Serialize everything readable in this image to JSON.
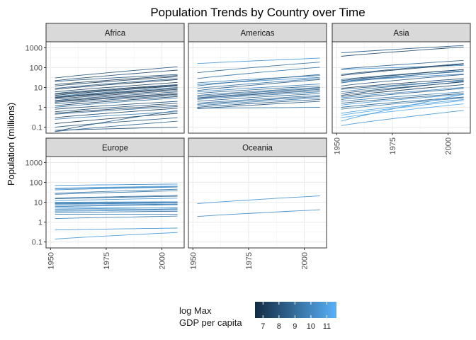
{
  "chart_data": {
    "type": "line",
    "facet_by": "continent",
    "title": "Population Trends by Country over Time",
    "ylabel": "Population (millions)",
    "xlabel": "",
    "y_scale": "log10",
    "ylim": [
      0.05,
      2000
    ],
    "xlim": [
      1948,
      2010
    ],
    "x_ticks": [
      1950,
      1975,
      2000
    ],
    "y_ticks": [
      0.1,
      1,
      10,
      100,
      1000
    ],
    "y_tick_labels": [
      "0.1",
      "1",
      "10",
      "100",
      "1000"
    ],
    "grid": true,
    "legend": {
      "title_lines": [
        "log Max",
        "GDP per capita"
      ],
      "position": "bottom",
      "ticks": [
        7,
        8,
        9,
        10,
        11
      ],
      "range": [
        6.5,
        11.6
      ],
      "color_low": "#132B43",
      "color_high": "#56B1F7"
    },
    "panels": [
      {
        "label": "Africa",
        "series": [
          {
            "p0": 30,
            "p1": 110,
            "g": 8.2
          },
          {
            "p0": 22,
            "p1": 75,
            "g": 7.8
          },
          {
            "p0": 20,
            "p1": 45,
            "g": 8.5
          },
          {
            "p0": 14,
            "p1": 40,
            "g": 7.2
          },
          {
            "p0": 12,
            "p1": 35,
            "g": 7.5
          },
          {
            "p0": 9,
            "p1": 28,
            "g": 8.8
          },
          {
            "p0": 8,
            "p1": 25,
            "g": 7.0
          },
          {
            "p0": 6,
            "p1": 18,
            "g": 7.6
          },
          {
            "p0": 5,
            "p1": 14,
            "g": 8.0
          },
          {
            "p0": 4.5,
            "p1": 13,
            "g": 7.3
          },
          {
            "p0": 4,
            "p1": 12,
            "g": 7.1
          },
          {
            "p0": 3.5,
            "p1": 10,
            "g": 9.2
          },
          {
            "p0": 3.2,
            "p1": 9,
            "g": 7.4
          },
          {
            "p0": 3,
            "p1": 8,
            "g": 6.9
          },
          {
            "p0": 2.6,
            "p1": 7,
            "g": 7.7
          },
          {
            "p0": 2.2,
            "p1": 6,
            "g": 8.3
          },
          {
            "p0": 2,
            "p1": 5,
            "g": 7.0
          },
          {
            "p0": 1.8,
            "p1": 4.5,
            "g": 7.5
          },
          {
            "p0": 1.5,
            "p1": 4,
            "g": 8.6
          },
          {
            "p0": 1.2,
            "p1": 3.5,
            "g": 7.2
          },
          {
            "p0": 1,
            "p1": 3,
            "g": 9.5
          },
          {
            "p0": 0.8,
            "p1": 2,
            "g": 7.9
          },
          {
            "p0": 0.6,
            "p1": 1.6,
            "g": 8.1
          },
          {
            "p0": 0.5,
            "p1": 1.3,
            "g": 7.3
          },
          {
            "p0": 0.45,
            "p1": 1.1,
            "g": 8.9
          },
          {
            "p0": 0.3,
            "p1": 0.9,
            "g": 7.6
          },
          {
            "p0": 0.25,
            "p1": 0.6,
            "g": 9.8
          },
          {
            "p0": 0.15,
            "p1": 0.5,
            "g": 7.1
          },
          {
            "p0": 0.1,
            "p1": 0.3,
            "g": 8.4
          },
          {
            "p0": 0.06,
            "p1": 0.2,
            "g": 9.0
          },
          {
            "p0": 0.06,
            "p1": 0.7,
            "g": 8.7
          },
          {
            "p0": 0.07,
            "p1": 0.1,
            "g": 8.0
          }
        ]
      },
      {
        "label": "Americas",
        "series": [
          {
            "p0": 160,
            "p1": 300,
            "g": 10.7
          },
          {
            "p0": 55,
            "p1": 190,
            "g": 9.2
          },
          {
            "p0": 28,
            "p1": 105,
            "g": 9.5
          },
          {
            "p0": 17,
            "p1": 40,
            "g": 9.8
          },
          {
            "p0": 14,
            "p1": 32,
            "g": 10.3
          },
          {
            "p0": 12,
            "p1": 45,
            "g": 8.9
          },
          {
            "p0": 9,
            "p1": 28,
            "g": 9.4
          },
          {
            "p0": 7,
            "p1": 25,
            "g": 8.6
          },
          {
            "p0": 6,
            "p1": 15,
            "g": 9.9
          },
          {
            "p0": 5,
            "p1": 12,
            "g": 8.8
          },
          {
            "p0": 4,
            "p1": 10,
            "g": 9.1
          },
          {
            "p0": 3.5,
            "p1": 9,
            "g": 8.5
          },
          {
            "p0": 3,
            "p1": 8,
            "g": 9.0
          },
          {
            "p0": 2.8,
            "p1": 7,
            "g": 8.3
          },
          {
            "p0": 2.5,
            "p1": 6,
            "g": 9.6
          },
          {
            "p0": 2,
            "p1": 5,
            "g": 8.7
          },
          {
            "p0": 1.6,
            "p1": 4,
            "g": 9.3
          },
          {
            "p0": 1.4,
            "p1": 3.5,
            "g": 8.9
          },
          {
            "p0": 1.2,
            "p1": 3,
            "g": 9.7
          },
          {
            "p0": 1,
            "p1": 2.5,
            "g": 8.4
          },
          {
            "p0": 0.9,
            "p1": 1,
            "g": 9.8
          },
          {
            "p0": 0.85,
            "p1": 2,
            "g": 8.2
          }
        ]
      },
      {
        "label": "Asia",
        "series": [
          {
            "p0": 550,
            "p1": 1300,
            "g": 8.6
          },
          {
            "p0": 370,
            "p1": 1100,
            "g": 7.8
          },
          {
            "p0": 85,
            "p1": 230,
            "g": 8.7
          },
          {
            "p0": 80,
            "p1": 130,
            "g": 10.5
          },
          {
            "p0": 45,
            "p1": 160,
            "g": 8.0
          },
          {
            "p0": 40,
            "p1": 150,
            "g": 7.5
          },
          {
            "p0": 25,
            "p1": 80,
            "g": 8.4
          },
          {
            "p0": 22,
            "p1": 80,
            "g": 7.6
          },
          {
            "p0": 20,
            "p1": 65,
            "g": 9.0
          },
          {
            "p0": 20,
            "p1": 48,
            "g": 10.2
          },
          {
            "p0": 17,
            "p1": 70,
            "g": 9.1
          },
          {
            "p0": 12,
            "p1": 45,
            "g": 8.3
          },
          {
            "p0": 9,
            "p1": 28,
            "g": 7.3
          },
          {
            "p0": 8,
            "p1": 22,
            "g": 8.9
          },
          {
            "p0": 6,
            "p1": 24,
            "g": 9.4
          },
          {
            "p0": 5,
            "p1": 19,
            "g": 7.9
          },
          {
            "p0": 4,
            "p1": 20,
            "g": 8.1
          },
          {
            "p0": 3.5,
            "p1": 14,
            "g": 7.4
          },
          {
            "p0": 3,
            "p1": 10,
            "g": 10.1
          },
          {
            "p0": 2.5,
            "p1": 9,
            "g": 8.5
          },
          {
            "p0": 2,
            "p1": 6,
            "g": 9.9
          },
          {
            "p0": 1.6,
            "p1": 5,
            "g": 8.2
          },
          {
            "p0": 1.3,
            "p1": 4.5,
            "g": 10.8
          },
          {
            "p0": 1,
            "p1": 3.3,
            "g": 8.8
          },
          {
            "p0": 0.8,
            "p1": 3,
            "g": 9.6
          },
          {
            "p0": 0.5,
            "p1": 2.5,
            "g": 10.9
          },
          {
            "p0": 0.4,
            "p1": 2.2,
            "g": 11.2
          },
          {
            "p0": 0.3,
            "p1": 1.5,
            "g": 11.4
          },
          {
            "p0": 0.2,
            "p1": 4.5,
            "g": 11.0
          },
          {
            "p0": 0.12,
            "p1": 0.7,
            "g": 10.6
          }
        ]
      },
      {
        "label": "Europe",
        "series": [
          {
            "p0": 70,
            "p1": 82,
            "g": 10.4
          },
          {
            "p0": 50,
            "p1": 65,
            "g": 10.6
          },
          {
            "p0": 48,
            "p1": 60,
            "g": 10.3
          },
          {
            "p0": 42,
            "p1": 58,
            "g": 10.2
          },
          {
            "p0": 28,
            "p1": 45,
            "g": 9.6
          },
          {
            "p0": 25,
            "p1": 38,
            "g": 9.4
          },
          {
            "p0": 16,
            "p1": 22,
            "g": 9.3
          },
          {
            "p0": 15,
            "p1": 20,
            "g": 9.0
          },
          {
            "p0": 12,
            "p1": 16,
            "g": 10.5
          },
          {
            "p0": 10,
            "p1": 10.5,
            "g": 10.1
          },
          {
            "p0": 9,
            "p1": 10,
            "g": 9.8
          },
          {
            "p0": 8.5,
            "p1": 10,
            "g": 9.5
          },
          {
            "p0": 8,
            "p1": 9,
            "g": 10.0
          },
          {
            "p0": 7,
            "p1": 8,
            "g": 9.7
          },
          {
            "p0": 6,
            "p1": 7.5,
            "g": 9.9
          },
          {
            "p0": 5.5,
            "p1": 5,
            "g": 10.7
          },
          {
            "p0": 4.5,
            "p1": 5.3,
            "g": 10.3
          },
          {
            "p0": 4,
            "p1": 4.5,
            "g": 9.2
          },
          {
            "p0": 3.5,
            "p1": 4,
            "g": 10.8
          },
          {
            "p0": 3,
            "p1": 3.5,
            "g": 9.1
          },
          {
            "p0": 2.5,
            "p1": 2.5,
            "g": 9.9
          },
          {
            "p0": 1.5,
            "p1": 2,
            "g": 9.6
          },
          {
            "p0": 0.4,
            "p1": 0.5,
            "g": 10.4
          },
          {
            "p0": 0.14,
            "p1": 0.3,
            "g": 10.9
          }
        ]
      },
      {
        "label": "Oceania",
        "series": [
          {
            "p0": 8.5,
            "p1": 21,
            "g": 10.5
          },
          {
            "p0": 1.9,
            "p1": 4.2,
            "g": 10.2
          }
        ]
      }
    ]
  }
}
